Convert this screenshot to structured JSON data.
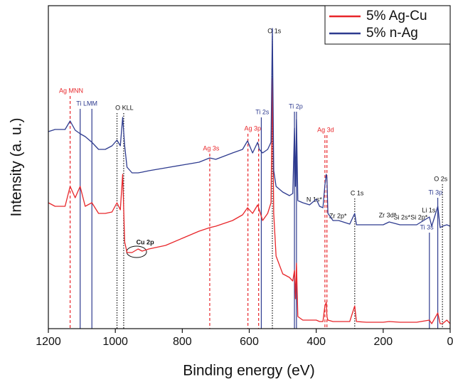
{
  "chart_data": {
    "type": "line",
    "xlabel": "Binding energy (eV)",
    "ylabel": "Intensity (a. u.)",
    "xlim": [
      1200,
      0
    ],
    "xticks": [
      1200,
      1000,
      800,
      600,
      400,
      200,
      0
    ],
    "ylim": [
      0,
      454
    ],
    "legend": "top-right",
    "x": [
      1200,
      1180,
      1150,
      1135,
      1120,
      1105,
      1090,
      1070,
      1050,
      1030,
      1010,
      995,
      985,
      978,
      972,
      965,
      950,
      932,
      920,
      900,
      850,
      800,
      750,
      718,
      700,
      650,
      620,
      605,
      590,
      575,
      570,
      560,
      545,
      535,
      531,
      527,
      520,
      500,
      480,
      470,
      465,
      462,
      459,
      455,
      440,
      420,
      400,
      390,
      380,
      374,
      370,
      368,
      365,
      350,
      333,
      300,
      285,
      280,
      250,
      200,
      182,
      150,
      100,
      62,
      55,
      37,
      30,
      23,
      10,
      0
    ],
    "series": [
      {
        "name": "5% Ag-Cu",
        "color": "#e8262a",
        "values": [
          177,
          172,
          172,
          200,
          184,
          200,
          172,
          177,
          162,
          162,
          164,
          177,
          167,
          217,
          122,
          107,
          107,
          112,
          109,
          112,
          117,
          127,
          137,
          142,
          144,
          152,
          160,
          170,
          162,
          174,
          167,
          152,
          162,
          177,
          352,
          162,
          102,
          77,
          72,
          67,
          82,
          42,
          92,
          17,
          12,
          12,
          12,
          10,
          10,
          32,
          37,
          17,
          12,
          10,
          10,
          10,
          32,
          10,
          9,
          9,
          10,
          9,
          9,
          12,
          7,
          22,
          7,
          7,
          12,
          7
        ]
      },
      {
        "name": "5% n-Ag",
        "color": "#2e3b8f",
        "values": [
          277,
          280,
          280,
          292,
          279,
          274,
          270,
          262,
          252,
          252,
          257,
          265,
          257,
          297,
          257,
          227,
          219,
          219,
          220,
          222,
          226,
          230,
          234,
          240,
          238,
          247,
          252,
          264,
          247,
          262,
          252,
          247,
          252,
          262,
          422,
          222,
          200,
          192,
          187,
          190,
          282,
          200,
          294,
          180,
          177,
          174,
          182,
          172,
          170,
          202,
          217,
          212,
          162,
          152,
          152,
          147,
          162,
          146,
          146,
          146,
          150,
          146,
          146,
          157,
          144,
          172,
          142,
          144,
          146,
          144
        ]
      }
    ],
    "annotations": [
      {
        "text": "Ag MNN",
        "x": 1132,
        "y": 334,
        "color": "#e8262a",
        "line_style": "dashed",
        "lines": [
          1135
        ]
      },
      {
        "text": "Ti LMM",
        "x": 1085,
        "y": 316,
        "color": "#2e3b8f",
        "line_style": "solid",
        "lines": [
          1105,
          1070
        ]
      },
      {
        "text": "O KLL",
        "x": 973,
        "y": 310,
        "color": "#111111",
        "line_style": "dotted",
        "lines": [
          995,
          975
        ]
      },
      {
        "text": "O 1s",
        "x": 525,
        "y": 418,
        "color": "#111111",
        "line_style": "dotted",
        "lines": [
          531
        ]
      },
      {
        "text": "Ti 2s",
        "x": 561,
        "y": 304,
        "color": "#2e3b8f",
        "line_style": "solid",
        "lines": [
          564
        ]
      },
      {
        "text": "Ti 2p",
        "x": 461,
        "y": 312,
        "color": "#2e3b8f",
        "line_style": "solid",
        "lines": [
          465,
          459
        ]
      },
      {
        "text": "Ag 3p",
        "x": 590,
        "y": 281,
        "color": "#e8262a",
        "line_style": "dashed",
        "lines": [
          604,
          572
        ]
      },
      {
        "text": "Ag 3s",
        "x": 714,
        "y": 253,
        "color": "#e8262a",
        "line_style": "dashed",
        "lines": [
          718
        ]
      },
      {
        "text": "Ag 3d",
        "x": 372,
        "y": 279,
        "color": "#e8262a",
        "line_style": "dashed",
        "lines": [
          374,
          368
        ]
      },
      {
        "text": "Cu 2p",
        "x": 911,
        "y": 121,
        "color": "#111111",
        "circled": true
      },
      {
        "text": "N 1s*",
        "x": 406,
        "y": 181,
        "color": "#111111"
      },
      {
        "text": "Zr 2p*",
        "x": 335,
        "y": 158,
        "color": "#111111"
      },
      {
        "text": "C 1s",
        "x": 278,
        "y": 190,
        "color": "#111111",
        "line_style": "dotted",
        "lines": [
          285
        ]
      },
      {
        "text": "Zr 3d*",
        "x": 187,
        "y": 159,
        "color": "#111111"
      },
      {
        "text": "Si 2s*",
        "x": 144,
        "y": 156,
        "color": "#111111"
      },
      {
        "text": "Si 2p*",
        "x": 93,
        "y": 156,
        "color": "#111111"
      },
      {
        "text": "O 2s",
        "x": 28,
        "y": 210,
        "color": "#111111",
        "line_style": "dotted",
        "lines": [
          23
        ]
      },
      {
        "text": "Ti 3p",
        "x": 44,
        "y": 191,
        "color": "#2e3b8f",
        "line_style": "solid",
        "lines": [
          37
        ]
      },
      {
        "text": "Li 1s",
        "x": 64,
        "y": 166,
        "color": "#111111"
      },
      {
        "text": "Ti 3s",
        "x": 70,
        "y": 142,
        "color": "#2e3b8f",
        "line_style": "solid",
        "lines": [
          62
        ]
      }
    ]
  }
}
